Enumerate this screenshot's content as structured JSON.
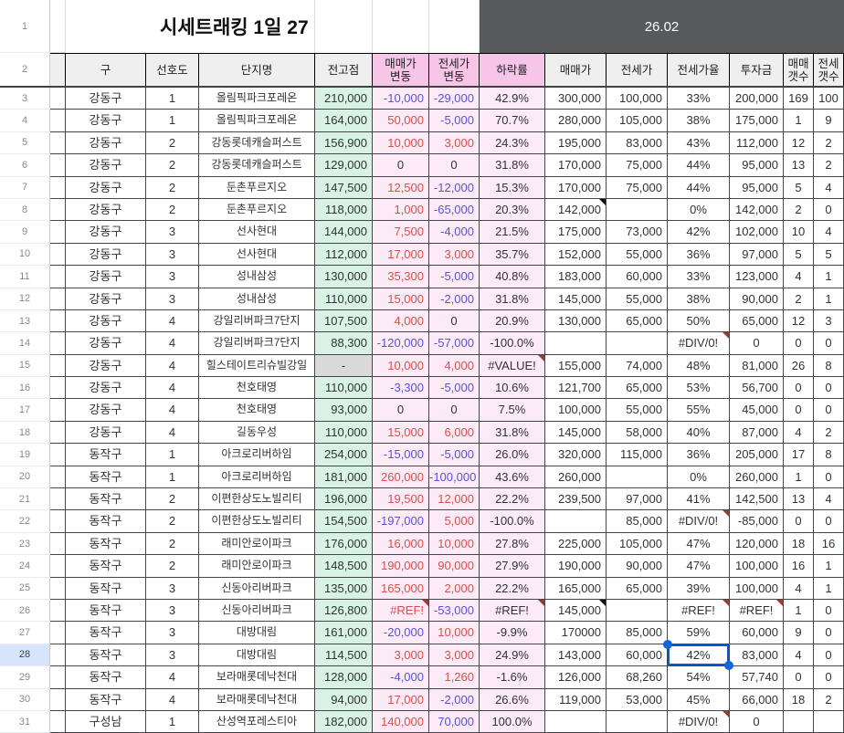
{
  "sheet": {
    "title_row": {
      "n": "1",
      "title": "시세트래킹 1일 27",
      "period": "26.02"
    },
    "header_row": {
      "n": "2",
      "labels": [
        "구",
        "선호도",
        "단지명",
        "전고점",
        "매매가\n변동",
        "전세가\n변동",
        "하락률",
        "매매가",
        "전세가",
        "전세가율",
        "투자금",
        "매매\n갯수",
        "전세\n갯수"
      ]
    },
    "rows": [
      {
        "n": "3",
        "c": [
          "강동구",
          "1",
          "올림픽파크포레온",
          "210,000",
          [
            "-10,000",
            "b"
          ],
          [
            "-29,000",
            "b"
          ],
          "42.9%",
          "300,000",
          "100,000",
          "33%",
          "200,000",
          "169",
          "100"
        ]
      },
      {
        "n": "4",
        "c": [
          "강동구",
          "1",
          "올림픽파크포레온",
          "164,000",
          [
            "50,000",
            "r"
          ],
          [
            "-5,000",
            "b"
          ],
          "70.7%",
          "280,000",
          "105,000",
          "38%",
          "175,000",
          "1",
          "9"
        ]
      },
      {
        "n": "5",
        "c": [
          "강동구",
          "2",
          "강동롯데캐슬퍼스트",
          "156,900",
          [
            "10,000",
            "r"
          ],
          [
            "3,000",
            "r"
          ],
          "24.3%",
          "195,000",
          "83,000",
          "43%",
          "112,000",
          "12",
          "2"
        ]
      },
      {
        "n": "6",
        "c": [
          "강동구",
          "2",
          "강동롯데캐슬퍼스트",
          "129,000",
          [
            "0",
            "z"
          ],
          [
            "0",
            "z"
          ],
          "31.8%",
          "170,000",
          "75,000",
          "44%",
          "95,000",
          "13",
          "2"
        ]
      },
      {
        "n": "7",
        "c": [
          "강동구",
          "2",
          "둔촌푸르지오",
          "147,500",
          [
            "12,500",
            "r"
          ],
          [
            "-12,000",
            "b"
          ],
          "15.3%",
          "170,000",
          "75,000",
          "44%",
          "95,000",
          "5",
          "4"
        ]
      },
      {
        "n": "8",
        "c": [
          "강동구",
          "2",
          "둔촌푸르지오",
          "118,000",
          [
            "1,000",
            "r"
          ],
          [
            "-65,000",
            "b"
          ],
          "20.3%",
          [
            "142,000",
            "tb"
          ],
          "",
          "0%",
          "142,000",
          "2",
          "0"
        ]
      },
      {
        "n": "9",
        "c": [
          "강동구",
          "3",
          "선사현대",
          "144,000",
          [
            "7,500",
            "r"
          ],
          [
            "-4,000",
            "b"
          ],
          "21.5%",
          "175,000",
          "73,000",
          "42%",
          "102,000",
          "10",
          "4"
        ]
      },
      {
        "n": "10",
        "c": [
          "강동구",
          "3",
          "선사현대",
          "112,000",
          [
            "17,000",
            "r"
          ],
          [
            "3,000",
            "r"
          ],
          "35.7%",
          "152,000",
          "55,000",
          "36%",
          "97,000",
          "5",
          "5"
        ]
      },
      {
        "n": "11",
        "c": [
          "강동구",
          "3",
          "성내삼성",
          "130,000",
          [
            "35,300",
            "r"
          ],
          [
            "-5,000",
            "b"
          ],
          "40.8%",
          "183,000",
          "60,000",
          "33%",
          "123,000",
          "4",
          "1"
        ]
      },
      {
        "n": "12",
        "c": [
          "강동구",
          "3",
          "성내삼성",
          "110,000",
          [
            "15,000",
            "r"
          ],
          [
            "-2,000",
            "b"
          ],
          "31.8%",
          "145,000",
          "55,000",
          "38%",
          "90,000",
          "2",
          "1"
        ]
      },
      {
        "n": "13",
        "c": [
          "강동구",
          "4",
          "강일리버파크7단지",
          "107,500",
          [
            "4,000",
            "r"
          ],
          [
            "0",
            "z"
          ],
          "20.9%",
          "130,000",
          "65,000",
          "50%",
          "65,000",
          "12",
          "3"
        ]
      },
      {
        "n": "14",
        "c": [
          "강동구",
          "4",
          "강일리버파크7단지",
          "88,300",
          [
            "-120,000",
            "b"
          ],
          [
            "-57,000",
            "b"
          ],
          "-100.0%",
          "",
          "",
          [
            "#DIV/0!",
            "tr"
          ],
          [
            "0",
            "z"
          ],
          "0",
          "0"
        ]
      },
      {
        "n": "15",
        "c": [
          "강동구",
          "4",
          "힐스테이트리슈빌강일",
          [
            "-",
            "gray"
          ],
          [
            "10,000",
            "r"
          ],
          [
            "4,000",
            "r"
          ],
          [
            "#VALUE!",
            "tr"
          ],
          "155,000",
          "74,000",
          "48%",
          "81,000",
          "26",
          "8"
        ]
      },
      {
        "n": "16",
        "c": [
          "강동구",
          "4",
          "천호태영",
          "110,000",
          [
            "-3,300",
            "b"
          ],
          [
            "-5,000",
            "b"
          ],
          "10.6%",
          "121,700",
          "65,000",
          "53%",
          "56,700",
          "0",
          "0"
        ]
      },
      {
        "n": "17",
        "c": [
          "강동구",
          "4",
          "천호태영",
          "93,000",
          [
            "0",
            "z"
          ],
          [
            "0",
            "z"
          ],
          "7.5%",
          "100,000",
          "55,000",
          "55%",
          "45,000",
          "0",
          "0"
        ]
      },
      {
        "n": "18",
        "c": [
          "강동구",
          "4",
          "길동우성",
          "110,000",
          [
            "15,000",
            "r"
          ],
          [
            "6,000",
            "r"
          ],
          "31.8%",
          "145,000",
          "58,000",
          "40%",
          "87,000",
          "4",
          "2"
        ]
      },
      {
        "n": "19",
        "c": [
          "동작구",
          "1",
          "아크로리버하임",
          "254,000",
          [
            "-15,000",
            "b"
          ],
          [
            "-5,000",
            "b"
          ],
          "26.0%",
          "320,000",
          "115,000",
          "36%",
          "205,000",
          "17",
          "8"
        ]
      },
      {
        "n": "20",
        "c": [
          "동작구",
          "1",
          "아크로리버하임",
          "181,000",
          [
            "260,000",
            "r"
          ],
          [
            "-100,000",
            "b"
          ],
          "43.6%",
          "260,000",
          "",
          "0%",
          "260,000",
          "1",
          "0"
        ]
      },
      {
        "n": "21",
        "c": [
          "동작구",
          "2",
          "이편한상도노빌리티",
          "196,000",
          [
            "19,500",
            "r"
          ],
          [
            "12,000",
            "r"
          ],
          "22.2%",
          "239,500",
          "97,000",
          "41%",
          "142,500",
          "13",
          "4"
        ]
      },
      {
        "n": "22",
        "c": [
          "동작구",
          "2",
          "이편한상도노빌리티",
          "154,500",
          [
            "-197,000",
            "b"
          ],
          [
            "5,000",
            "r"
          ],
          "-100.0%",
          "",
          "85,000",
          [
            "#DIV/0!",
            "tr"
          ],
          "-85,000",
          "0",
          "0"
        ]
      },
      {
        "n": "23",
        "c": [
          "동작구",
          "2",
          "래미안로이파크",
          "176,000",
          [
            "16,000",
            "r"
          ],
          [
            "10,000",
            "r"
          ],
          "27.8%",
          "225,000",
          "105,000",
          "47%",
          "120,000",
          "18",
          "16"
        ]
      },
      {
        "n": "24",
        "c": [
          "동작구",
          "2",
          "래미안로이파크",
          "148,500",
          [
            "190,000",
            "r"
          ],
          [
            "90,000",
            "r"
          ],
          "27.9%",
          "190,000",
          "90,000",
          "47%",
          "100,000",
          "16",
          "1"
        ]
      },
      {
        "n": "25",
        "c": [
          "동작구",
          "3",
          "신동아리버파크",
          "135,000",
          [
            "165,000",
            "r"
          ],
          [
            "2,000",
            "r"
          ],
          "22.2%",
          "165,000",
          "65,000",
          "39%",
          "100,000",
          "4",
          "1"
        ]
      },
      {
        "n": "26",
        "c": [
          "동작구",
          "3",
          "신동아리버파크",
          "126,800",
          [
            "#REF!",
            "r tr"
          ],
          [
            "-53,000",
            "b"
          ],
          [
            "#REF!",
            "tr"
          ],
          [
            "145,000",
            "tb"
          ],
          "",
          [
            "#REF!",
            "tr"
          ],
          [
            "#REF!",
            "tr z"
          ],
          "1",
          "0"
        ]
      },
      {
        "n": "27",
        "c": [
          "동작구",
          "3",
          "대방대림",
          "161,000",
          [
            "-20,000",
            "b"
          ],
          [
            "10,000",
            "r"
          ],
          "-9.9%",
          "170000",
          "85,000",
          "59%",
          "60,000",
          "9",
          "0"
        ]
      },
      {
        "n": "28",
        "c": [
          "동작구",
          "3",
          "대방대림",
          "114,500",
          [
            "3,000",
            "r"
          ],
          [
            "3,000",
            "r"
          ],
          "24.9%",
          "143,000",
          "60,000",
          [
            "42%",
            "sel"
          ],
          "83,000",
          "4",
          "0"
        ]
      },
      {
        "n": "29",
        "c": [
          "동작구",
          "4",
          "보라매롯데낙천대",
          "128,000",
          [
            "-4,000",
            "b"
          ],
          [
            "1,260",
            "r"
          ],
          "-1.6%",
          "126,000",
          "68,260",
          "54%",
          "57,740",
          "0",
          "0"
        ]
      },
      {
        "n": "30",
        "c": [
          "동작구",
          "4",
          "보라매롯데낙천대",
          "94,000",
          [
            "17,000",
            "r"
          ],
          [
            "-2,000",
            "b"
          ],
          "26.6%",
          "119,000",
          "53,000",
          "45%",
          "66,000",
          "18",
          "2"
        ]
      },
      {
        "n": "31",
        "c": [
          "구성남",
          "1",
          "산성역포레스티아",
          "182,000",
          [
            "140,000",
            "r"
          ],
          [
            "70,000",
            "b"
          ],
          "100.0%",
          "",
          "",
          [
            "#DIV/0!",
            "tr"
          ],
          [
            "0",
            "z"
          ],
          "",
          ""
        ]
      }
    ],
    "selection": {
      "row": "28",
      "column": "전세가율",
      "value": "42%"
    },
    "colors": {
      "positive_change": "#d85048",
      "negative_change": "#5a53d4",
      "selection_border": "#0b57d0",
      "selected_row_fill": "#d7e5fc",
      "peak_column_fill": "#d8f2e3",
      "change_column_fill": "#fcebf6",
      "header_pink": "#f6c5e8",
      "header_gray": "#efefef",
      "period_band": "#58595b",
      "error_marker": "#a5382c",
      "note_marker": "#111111",
      "dash_cell_fill": "#d9d9d9"
    }
  }
}
